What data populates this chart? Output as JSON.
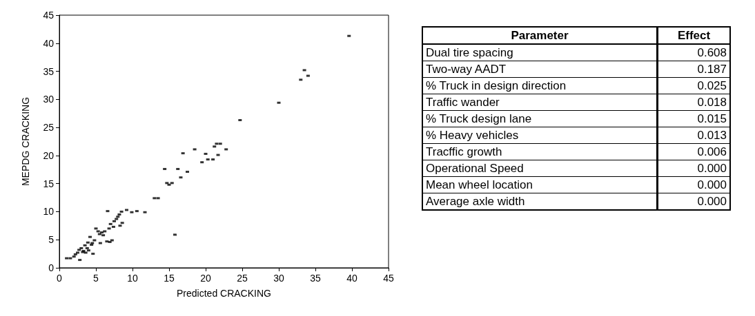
{
  "chart_data": [
    {
      "type": "scatter",
      "xlabel": "Predicted CRACKING",
      "ylabel": "MEPDG CRACKING",
      "color": "#000000",
      "marker": "square",
      "grid": false,
      "xlim": [
        0,
        45
      ],
      "ylim": [
        0,
        45
      ],
      "xticks": [
        0,
        5,
        10,
        15,
        20,
        25,
        30,
        35,
        40,
        45
      ],
      "yticks": [
        0,
        5,
        10,
        15,
        20,
        25,
        30,
        35,
        40,
        45
      ],
      "x": [
        39.6,
        33.0,
        33.5,
        34.0,
        30.0,
        24.7,
        22.8,
        22.0,
        21.5,
        21.2,
        21.7,
        21.0,
        20.3,
        19.5,
        20.0,
        18.5,
        16.9,
        17.5,
        16.2,
        16.6,
        15.4,
        15.0,
        14.7,
        14.4,
        13.5,
        13.0,
        15.8,
        6.6,
        9.2,
        8.5,
        10.6,
        9.9,
        11.7,
        8.2,
        8.0,
        7.8,
        7.5,
        8.6,
        8.3,
        7.0,
        7.4,
        6.8,
        6.2,
        5.8,
        5.5,
        5.0,
        5.3,
        6.0,
        6.5,
        7.2,
        4.5,
        4.8,
        4.2,
        3.9,
        3.5,
        3.8,
        4.4,
        3.0,
        3.3,
        2.7,
        2.5,
        2.2,
        2.0,
        1.5,
        1.0,
        3.6,
        4.6,
        5.6,
        6.9,
        3.2,
        4.0,
        2.8
      ],
      "values": [
        41.3,
        33.5,
        35.2,
        34.2,
        29.4,
        26.3,
        21.1,
        22.1,
        22.1,
        21.6,
        20.1,
        19.3,
        19.3,
        18.8,
        20.3,
        21.1,
        20.4,
        17.1,
        17.6,
        16.1,
        15.1,
        14.8,
        15.1,
        17.6,
        12.4,
        12.4,
        5.9,
        10.1,
        10.3,
        10.0,
        10.1,
        9.9,
        9.9,
        9.5,
        9.1,
        8.7,
        8.3,
        8.0,
        7.5,
        7.8,
        7.3,
        7.0,
        6.5,
        6.3,
        6.0,
        7.0,
        6.5,
        5.8,
        4.7,
        4.9,
        4.4,
        4.9,
        5.5,
        4.5,
        4.0,
        3.5,
        4.1,
        3.5,
        3.0,
        3.2,
        2.7,
        2.4,
        2.0,
        1.7,
        1.7,
        2.7,
        2.5,
        4.4,
        4.6,
        2.8,
        3.1,
        1.4
      ]
    },
    {
      "type": "other",
      "xlabel": "Parameter",
      "ylabel": "Effect",
      "categories": [
        "Dual tire spacing",
        "Two-way AADT",
        "% Truck in design direction",
        "Traffic wander",
        "% Truck design lane",
        "% Heavy vehicles",
        "Tracffic growth",
        "Operational Speed",
        "Mean wheel location",
        "Average axle width"
      ],
      "value_labels": [
        "0.608",
        "0.187",
        "0.025",
        "0.018",
        "0.015",
        "0.013",
        "0.006",
        "0.000",
        "0.000",
        "0.000"
      ]
    }
  ]
}
